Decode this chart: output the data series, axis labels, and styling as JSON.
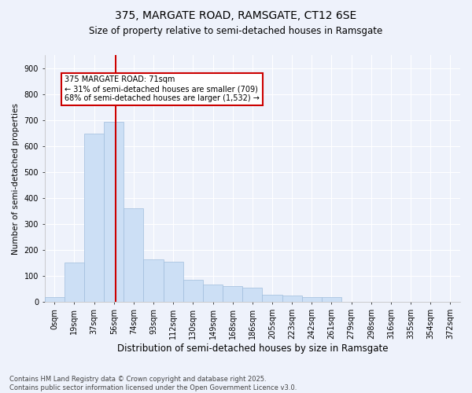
{
  "title1": "375, MARGATE ROAD, RAMSGATE, CT12 6SE",
  "title2": "Size of property relative to semi-detached houses in Ramsgate",
  "xlabel": "Distribution of semi-detached houses by size in Ramsgate",
  "ylabel": "Number of semi-detached properties",
  "bar_labels": [
    "0sqm",
    "19sqm",
    "37sqm",
    "56sqm",
    "74sqm",
    "93sqm",
    "112sqm",
    "130sqm",
    "149sqm",
    "168sqm",
    "186sqm",
    "205sqm",
    "223sqm",
    "242sqm",
    "261sqm",
    "279sqm",
    "298sqm",
    "316sqm",
    "335sqm",
    "354sqm",
    "372sqm"
  ],
  "bar_values": [
    18,
    152,
    648,
    693,
    360,
    165,
    155,
    87,
    68,
    62,
    56,
    28,
    25,
    20,
    18,
    0,
    0,
    0,
    0,
    0,
    0
  ],
  "bar_color": "#ccdff5",
  "bar_edge_color": "#a0bedd",
  "vline_color": "#cc0000",
  "vline_x_pos": 3.1,
  "annotation_title": "375 MARGATE ROAD: 71sqm",
  "annotation_line1": "← 31% of semi-detached houses are smaller (709)",
  "annotation_line2": "68% of semi-detached houses are larger (1,532) →",
  "annotation_box_color": "white",
  "annotation_box_edge": "#cc0000",
  "ylim": [
    0,
    950
  ],
  "yticks": [
    0,
    100,
    200,
    300,
    400,
    500,
    600,
    700,
    800,
    900
  ],
  "footnote1": "Contains HM Land Registry data © Crown copyright and database right 2025.",
  "footnote2": "Contains public sector information licensed under the Open Government Licence v3.0.",
  "bg_color": "#eef2fb",
  "grid_color": "#ffffff",
  "title1_fontsize": 10,
  "title2_fontsize": 8.5,
  "ylabel_fontsize": 7.5,
  "xlabel_fontsize": 8.5,
  "tick_fontsize": 7,
  "annot_fontsize": 7
}
